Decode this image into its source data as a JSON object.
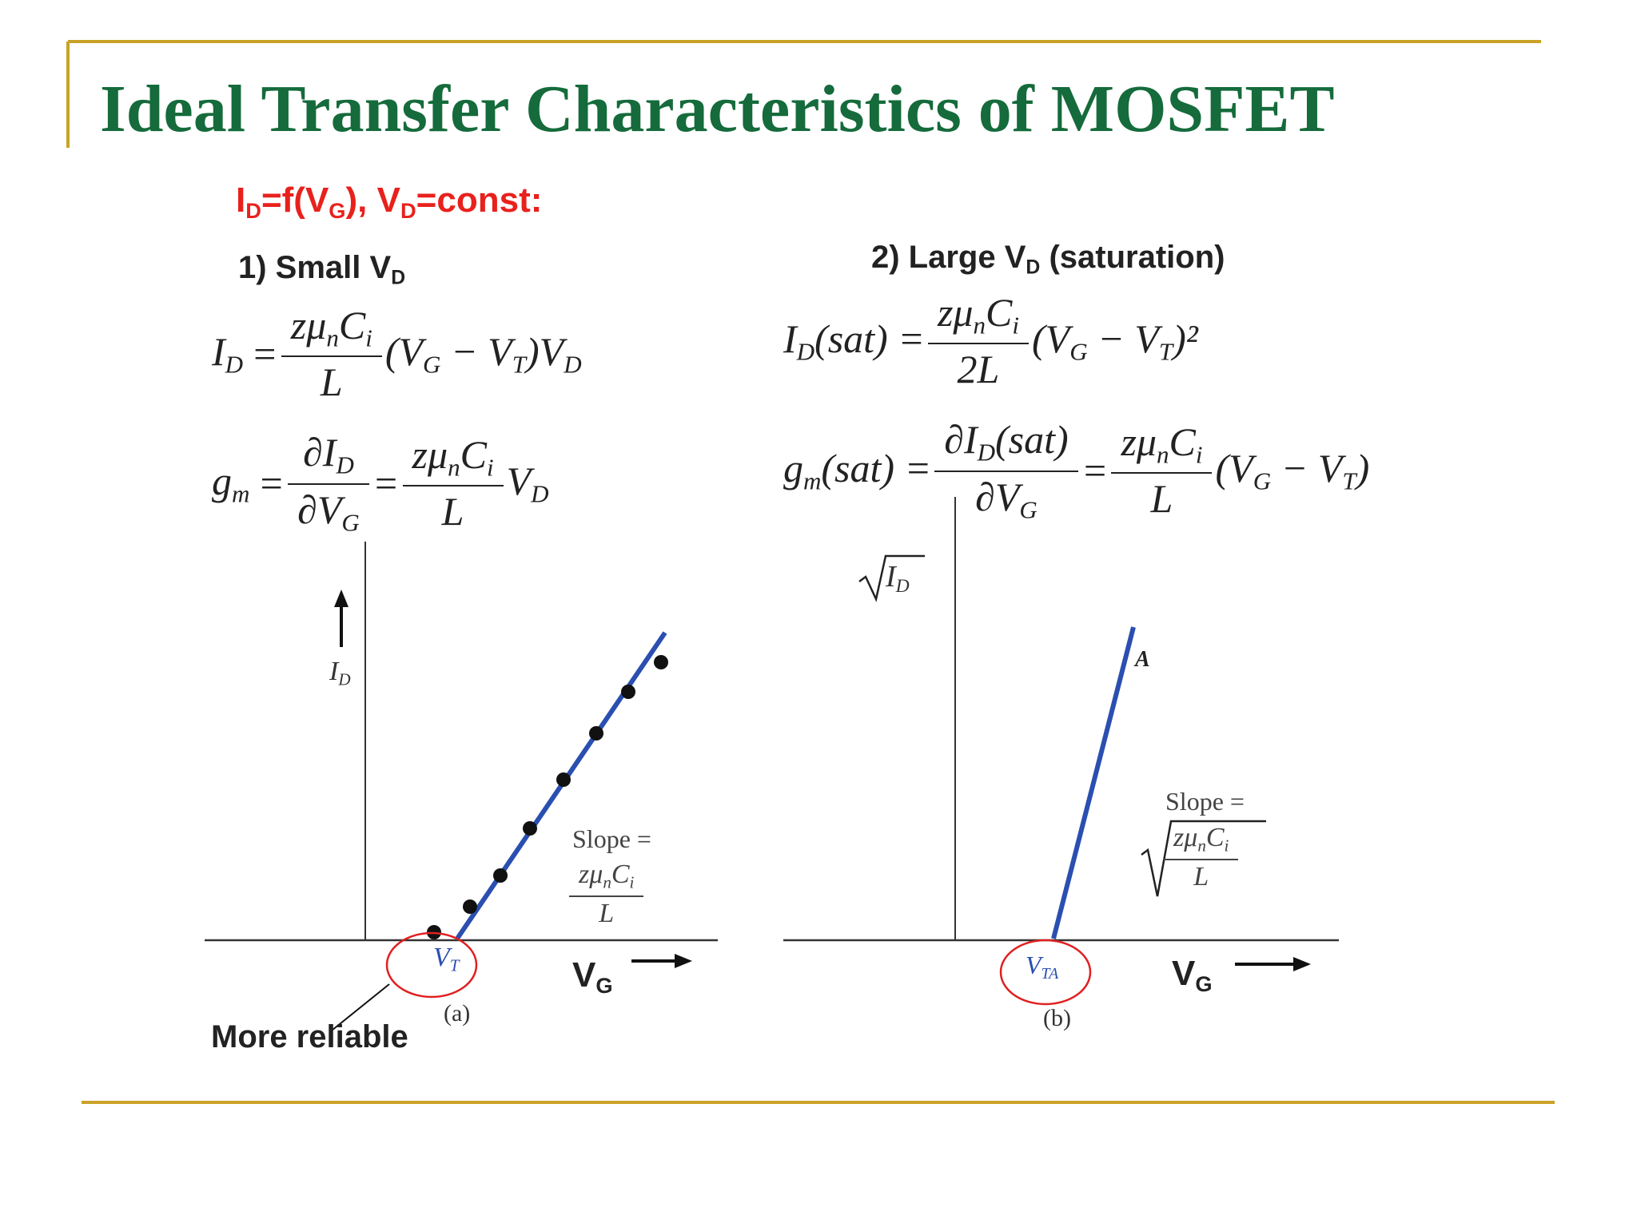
{
  "title": "Ideal Transfer Characteristics of MOSFET",
  "condition": [
    "I",
    "D",
    "=f(V",
    "G",
    "), V",
    "D",
    "=const:"
  ],
  "small": {
    "heading": [
      "1) Small V",
      "D"
    ],
    "equations": [
      [
        {
          "t": [
            "I",
            "D"
          ]
        },
        {
          "t": [
            "="
          ]
        },
        {
          "num": [
            "zμ",
            "n",
            "C",
            "i"
          ],
          "den": [
            "L"
          ]
        },
        {
          "t": [
            "(V",
            "G",
            " − V",
            "T",
            ")V",
            "D"
          ]
        }
      ],
      [
        {
          "t": [
            "g",
            "m"
          ]
        },
        {
          "t": [
            "="
          ]
        },
        {
          "num": [
            "∂I",
            "D"
          ],
          "den": [
            "∂V",
            "G"
          ]
        },
        {
          "t": [
            "="
          ]
        },
        {
          "num": [
            "zμ",
            "n",
            "C",
            "i"
          ],
          "den": [
            "L"
          ]
        },
        {
          "t": [
            "V",
            "D"
          ]
        }
      ]
    ],
    "y_label": [
      "I",
      "D"
    ],
    "x_label": [
      "V",
      "G"
    ],
    "threshold": [
      "V",
      "T"
    ],
    "slope": "Slope =",
    "slope_num": [
      "zμ",
      "n",
      "C",
      "i"
    ],
    "slope_den": [
      "L"
    ],
    "caption": "(a)",
    "note": "More reliable"
  },
  "large": {
    "heading": [
      "2) Large V",
      "D",
      " (saturation)"
    ],
    "equations": [
      [
        {
          "t": [
            "I",
            "D",
            "(sat) ="
          ]
        },
        {
          "num": [
            "zμ",
            "n",
            "C",
            "i"
          ],
          "den": [
            "2L"
          ]
        },
        {
          "t": [
            "(V",
            "G",
            " − V",
            "T",
            ")²"
          ]
        }
      ],
      [
        {
          "t": [
            "g",
            "m",
            "(sat) ="
          ]
        },
        {
          "num": [
            "∂I",
            "D",
            "(sat)"
          ],
          "den": [
            "∂V",
            "G"
          ]
        },
        {
          "t": [
            "="
          ]
        },
        {
          "num": [
            "zμ",
            "n",
            "C",
            "i"
          ],
          "den": [
            "L"
          ]
        },
        {
          "t": [
            "(V",
            "G",
            " − V",
            "T",
            ")"
          ]
        }
      ]
    ],
    "y_label": [
      "I",
      "D"
    ],
    "x_label": [
      "V",
      "G"
    ],
    "threshold": [
      "V",
      "TA"
    ],
    "point": "A",
    "slope": "Slope =",
    "slope_num": [
      "zμ",
      "n",
      "C",
      "i"
    ],
    "slope_den": [
      "L"
    ],
    "caption": "(b)"
  }
}
